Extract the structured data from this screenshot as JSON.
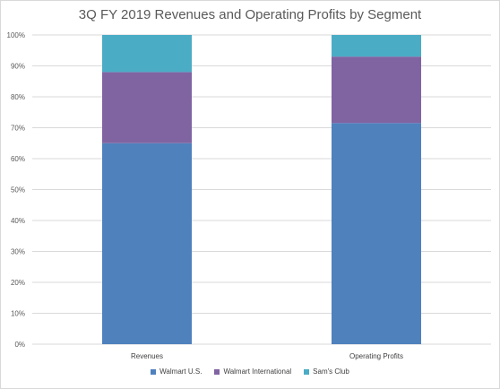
{
  "chart_data": {
    "type": "bar",
    "stacked": true,
    "normalized": true,
    "title": "3Q FY 2019 Revenues and Operating Profits by Segment",
    "xlabel": "",
    "ylabel": "",
    "categories": [
      "Revenues",
      "Operating Profits"
    ],
    "series": [
      {
        "name": "Walmart U.S.",
        "values": [
          65,
          71.5
        ],
        "color": "#4f81bd"
      },
      {
        "name": "Walmart International",
        "values": [
          23,
          21.5
        ],
        "color": "#8064a2"
      },
      {
        "name": "Sam's Club",
        "values": [
          12,
          7
        ],
        "color": "#4bacc6"
      }
    ],
    "ylim": [
      0,
      100
    ],
    "yticks": [
      "0%",
      "10%",
      "20%",
      "30%",
      "40%",
      "50%",
      "60%",
      "70%",
      "80%",
      "90%",
      "100%"
    ],
    "grid": true,
    "legend_position": "bottom"
  }
}
